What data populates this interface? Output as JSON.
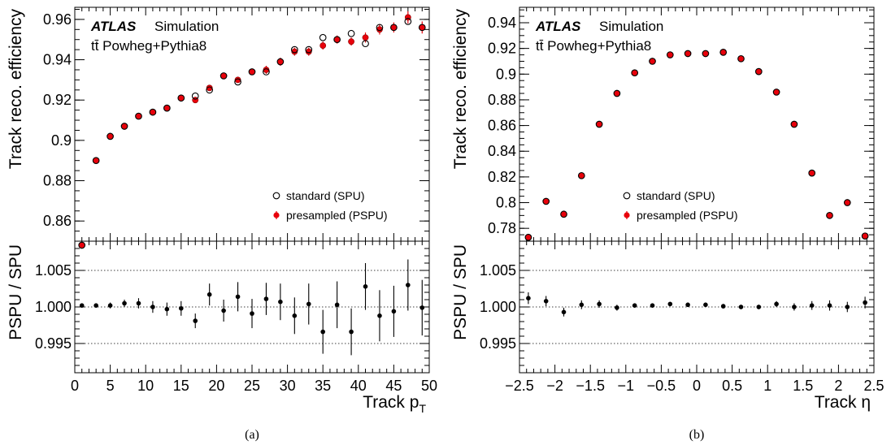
{
  "panels": [
    {
      "caption": "(a)",
      "atlas_label": "ATLAS",
      "atlas_suffix": "Simulation",
      "process_label": "tt̄ Powheg+Pythia8",
      "legend": [
        "standard (SPU)",
        "presampled (PSPU)"
      ],
      "xlabel_main": "Track p",
      "xlabel_sub": "T",
      "ylabel_top": "Track reco. efficiency",
      "ylabel_bottom": "PSPU / SPU"
    },
    {
      "caption": "(b)",
      "atlas_label": "ATLAS",
      "atlas_suffix": "Simulation",
      "process_label": "tt̄ Powheg+Pythia8",
      "legend": [
        "standard (SPU)",
        "presampled (PSPU)"
      ],
      "xlabel_main": "Track η",
      "xlabel_sub": "",
      "ylabel_top": "Track reco. efficiency",
      "ylabel_bottom": "PSPU / SPU"
    }
  ],
  "colors": {
    "spu": "#000000",
    "pspu": "#e8000b",
    "ratio": "#000000"
  },
  "chart_data": [
    {
      "type": "scatter",
      "title": "",
      "xlabel": "Track p_T",
      "ylabel": "Track reco. efficiency",
      "xlim": [
        0,
        50
      ],
      "ylim": [
        0.85,
        0.966
      ],
      "xticks": [
        0,
        5,
        10,
        15,
        20,
        25,
        30,
        35,
        40,
        45,
        50
      ],
      "yticks": [
        0.86,
        0.88,
        0.9,
        0.92,
        0.94,
        0.96
      ],
      "x": [
        1,
        3,
        5,
        7,
        9,
        11,
        13,
        15,
        17,
        19,
        21,
        23,
        25,
        27,
        29,
        31,
        33,
        35,
        37,
        39,
        41,
        43,
        45,
        47,
        49
      ],
      "series": [
        {
          "name": "standard (SPU)",
          "marker": "open-circle",
          "values": [
            0.848,
            0.89,
            0.902,
            0.907,
            0.912,
            0.914,
            0.916,
            0.921,
            0.922,
            0.925,
            0.932,
            0.929,
            0.934,
            0.934,
            0.939,
            0.945,
            0.945,
            0.951,
            0.95,
            0.953,
            0.948,
            0.956,
            0.956,
            0.959,
            0.956
          ]
        },
        {
          "name": "presampled (PSPU)",
          "marker": "filled-circle",
          "values": [
            0.848,
            0.89,
            0.902,
            0.907,
            0.912,
            0.914,
            0.916,
            0.921,
            0.92,
            0.926,
            0.932,
            0.93,
            0.934,
            0.935,
            0.939,
            0.944,
            0.944,
            0.947,
            0.95,
            0.949,
            0.951,
            0.955,
            0.956,
            0.961,
            0.956
          ],
          "errors": [
            0.001,
            0.001,
            0.001,
            0.001,
            0.001,
            0.001,
            0.001,
            0.001,
            0.0015,
            0.0015,
            0.0015,
            0.0015,
            0.0015,
            0.002,
            0.002,
            0.002,
            0.002,
            0.002,
            0.002,
            0.002,
            0.0025,
            0.0025,
            0.0025,
            0.003,
            0.003
          ]
        }
      ],
      "ratio": {
        "ylabel": "PSPU / SPU",
        "ylim": [
          0.991,
          1.009
        ],
        "yticks": [
          0.995,
          1.0,
          1.005
        ],
        "reference_lines": [
          0.995,
          1.0,
          1.005
        ],
        "values": [
          1.0002,
          1.0002,
          1.0002,
          1.0005,
          1.0005,
          1.0,
          0.9997,
          0.9998,
          0.9981,
          1.0017,
          0.9995,
          1.0014,
          0.9991,
          1.0011,
          1.0007,
          0.9988,
          1.0004,
          0.9966,
          1.0003,
          0.9966,
          1.0028,
          0.9988,
          0.9994,
          1.003,
          0.9999
        ],
        "errors": [
          0.0003,
          0.0003,
          0.0004,
          0.0005,
          0.0007,
          0.0008,
          0.0009,
          0.001,
          0.001,
          0.0015,
          0.0015,
          0.002,
          0.002,
          0.0022,
          0.0025,
          0.0025,
          0.0028,
          0.003,
          0.0032,
          0.0032,
          0.0032,
          0.0035,
          0.0035,
          0.0035,
          0.0038
        ]
      }
    },
    {
      "type": "scatter",
      "title": "",
      "xlabel": "Track η",
      "ylabel": "Track reco. efficiency",
      "xlim": [
        -2.5,
        2.5
      ],
      "ylim": [
        0.77,
        0.952
      ],
      "xticks": [
        -2.5,
        -2,
        -1.5,
        -1,
        -0.5,
        0,
        0.5,
        1,
        1.5,
        2,
        2.5
      ],
      "xticklabels": [
        "−2.5",
        "−2",
        "−1.5",
        "−1",
        "−0.5",
        "0",
        "0.5",
        "1",
        "1.5",
        "2",
        "2.5"
      ],
      "yticks": [
        0.78,
        0.8,
        0.82,
        0.84,
        0.86,
        0.88,
        0.9,
        0.92,
        0.94
      ],
      "x": [
        -2.375,
        -2.125,
        -1.875,
        -1.625,
        -1.375,
        -1.125,
        -0.875,
        -0.625,
        -0.375,
        -0.125,
        0.125,
        0.375,
        0.625,
        0.875,
        1.125,
        1.375,
        1.625,
        1.875,
        2.125,
        2.375
      ],
      "series": [
        {
          "name": "standard (SPU)",
          "marker": "open-circle",
          "values": [
            0.773,
            0.801,
            0.791,
            0.821,
            0.861,
            0.885,
            0.901,
            0.91,
            0.915,
            0.916,
            0.916,
            0.917,
            0.912,
            0.902,
            0.886,
            0.861,
            0.823,
            0.79,
            0.8,
            0.774
          ]
        },
        {
          "name": "presampled (PSPU)",
          "marker": "filled-circle",
          "values": [
            0.773,
            0.801,
            0.791,
            0.821,
            0.861,
            0.885,
            0.901,
            0.91,
            0.915,
            0.916,
            0.916,
            0.917,
            0.912,
            0.902,
            0.886,
            0.861,
            0.823,
            0.79,
            0.8,
            0.774
          ],
          "errors": [
            0.0006,
            0.0006,
            0.0006,
            0.0005,
            0.0005,
            0.0004,
            0.0004,
            0.0004,
            0.0004,
            0.0004,
            0.0004,
            0.0004,
            0.0004,
            0.0004,
            0.0004,
            0.0005,
            0.0005,
            0.0006,
            0.0006,
            0.0006
          ]
        }
      ],
      "ratio": {
        "ylabel": "PSPU / SPU",
        "ylim": [
          0.991,
          1.009
        ],
        "yticks": [
          0.995,
          1.0,
          1.005
        ],
        "reference_lines": [
          0.995,
          1.0,
          1.005
        ],
        "values": [
          1.0012,
          1.0008,
          0.9993,
          1.0003,
          1.0004,
          0.9999,
          1.0002,
          1.0002,
          1.0004,
          1.0003,
          1.0003,
          1.0001,
          1.0,
          1.0,
          1.0004,
          1.0,
          1.0002,
          1.0002,
          1.0,
          1.0006
        ],
        "errors": [
          0.0008,
          0.0007,
          0.0006,
          0.0006,
          0.0005,
          0.0004,
          0.0003,
          0.0003,
          0.0003,
          0.0003,
          0.0003,
          0.0003,
          0.0003,
          0.0003,
          0.0004,
          0.0005,
          0.0006,
          0.0007,
          0.0007,
          0.0008
        ]
      }
    }
  ]
}
